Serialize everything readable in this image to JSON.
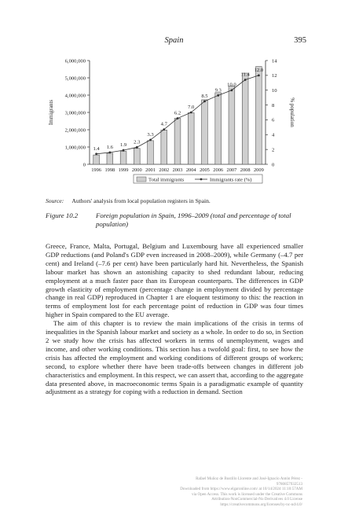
{
  "header": {
    "running_title": "Spain",
    "page_number": "395"
  },
  "chart_data": {
    "type": "bar",
    "categories": [
      "1996",
      "1998",
      "1999",
      "2000",
      "2001",
      "2002",
      "2003",
      "2004",
      "2005",
      "2006",
      "2007",
      "2008",
      "2009"
    ],
    "series": [
      {
        "name": "Total immigrants",
        "type": "bar",
        "axis": "left",
        "values": [
          540000,
          640000,
          750000,
          920000,
          1370000,
          1980000,
          2660000,
          2980000,
          3730000,
          4140000,
          4520000,
          5270000,
          5650000
        ]
      },
      {
        "name": "Immigrants rate (%)",
        "type": "line",
        "axis": "right",
        "values": [
          1.4,
          1.6,
          1.9,
          2.3,
          3.3,
          4.7,
          6.2,
          7.0,
          8.5,
          9.3,
          10.0,
          11.4,
          12.0
        ],
        "labels": [
          "1.4",
          "1.6",
          "1.9",
          "2.3",
          "3.3",
          "4.7",
          "6.2",
          "7.0",
          "8.5",
          "9.3",
          "10.0",
          "11.4",
          "12.0"
        ]
      }
    ],
    "ylabel": "Immigrants",
    "y2label": "% population",
    "ylim": [
      0,
      6000000
    ],
    "y2lim": [
      0,
      14
    ],
    "yticks": [
      "0",
      "1,000,000",
      "2,000,000",
      "3,000,000",
      "4,000,000",
      "5,000,000",
      "6,000,000"
    ],
    "y2ticks": [
      "0",
      "2",
      "4",
      "6",
      "8",
      "10",
      "12",
      "14"
    ],
    "legend_position": "bottom",
    "grid": false,
    "colors": {
      "bar_fill": "#cfcfcf",
      "bar_stroke": "#555555",
      "line": "#333333"
    }
  },
  "source": {
    "label": "Source:",
    "text": "Authors' analysis from local population registers in Spain."
  },
  "figure": {
    "label": "Figure 10.2",
    "caption": "Foreign population in Spain, 1996–2009 (total and percentage of total population)"
  },
  "body": {
    "paragraphs": [
      "Greece, France, Malta, Portugal, Belgium and Luxembourg have all experienced smaller GDP reductions (and Poland's GDP even increased in 2008–2009), while Germany (–4.7 per cent) and Ireland (–7.6 per cent) have been particularly hard hit. Nevertheless, the Spanish labour market has shown an astonishing capacity to shed redundant labour, reducing employment at a much faster pace than its European counterparts. The differences in GDP growth elasticity of employment (percentage change in employment divided by percentage change in real GDP) reproduced in Chapter 1 are eloquent testimony to this: the reaction in terms of employment lost for each percentage point of reduction in GDP was four times higher in Spain compared to the EU average.",
      "The aim of this chapter is to review the main implications of the crisis in terms of inequalities in the Spanish labour market and society as a whole. In order to do so, in Section 2 we study how the crisis has affected workers in terms of unemployment, wages and income, and other working conditions. This section has a twofold goal: first, to see how the crisis has affected the employment and working conditions of different groups of workers; second, to explore whether there have been trade-offs between changes in different job characteristics and employment. In this respect, we can assert that, according to the aggregate data presented above, in macroeconomic terms Spain is a paradigmatic example of quantity adjustment as a strategy for coping with a reduction in demand. Section"
    ]
  },
  "footer": {
    "lines": [
      "Rafael Muñoz de Bustillo Llorente and José-Ignacio Antón Pérez -",
      "9780857932513",
      "Downloaded from https://www.elgaronline.com/ at 10/14/2024 11:10:57AM",
      "via Open Access. This work is licensed under the Creative Commons",
      "Attribution-NonCommercial-No Derivatives 4.0 License",
      "https://creativecommons.org/licenses/by-nc-nd/4.0/"
    ]
  }
}
